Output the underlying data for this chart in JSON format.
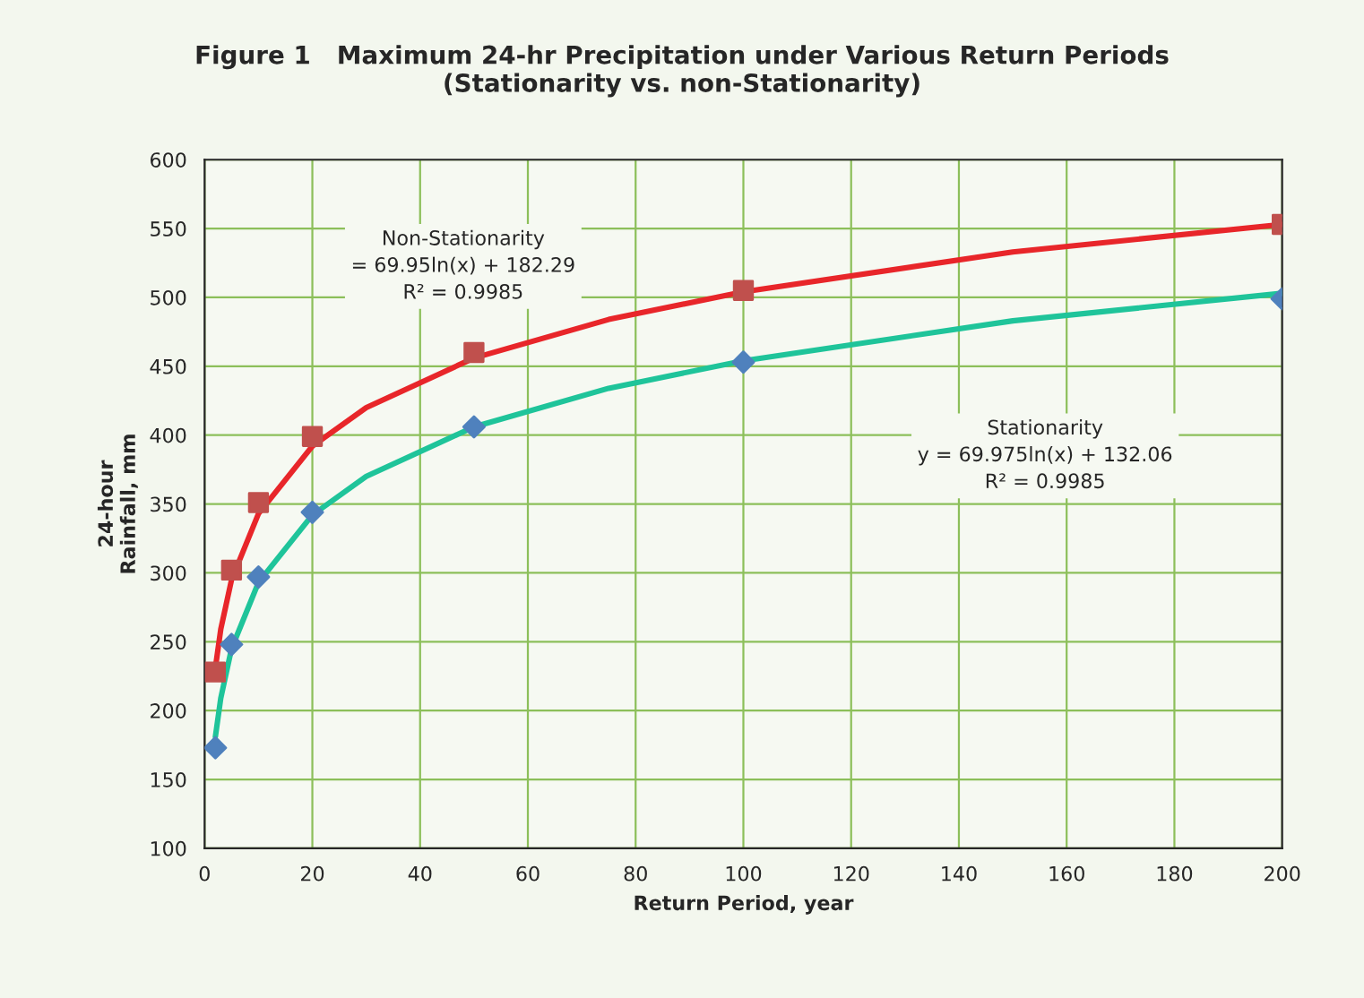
{
  "chart_data": {
    "type": "scatter",
    "title": "Figure 1   Maximum 24-hr Precipitation under Various Return Periods\n(Stationarity vs. non-Stationarity)",
    "xlabel": "Return Period, year",
    "ylabel": "24-hour\nRainfall, mm",
    "xlim": [
      0,
      200
    ],
    "xticks": [
      0,
      20,
      40,
      60,
      80,
      100,
      120,
      140,
      160,
      180,
      200
    ],
    "ylim": [
      100,
      600
    ],
    "yticks": [
      100,
      150,
      200,
      250,
      300,
      350,
      400,
      450,
      500,
      550,
      600
    ],
    "grid": true,
    "legend": false,
    "series": [
      {
        "type": "line",
        "color": "#e8262a",
        "marker": "none",
        "x": [
          2,
          3,
          5,
          10,
          20,
          30,
          50,
          75,
          100,
          150,
          200
        ],
        "values": [
          231,
          259,
          295,
          343,
          392,
          420,
          456,
          484,
          504,
          533,
          553
        ]
      },
      {
        "type": "line",
        "color": "#1fc49a",
        "marker": "none",
        "x": [
          2,
          3,
          5,
          10,
          20,
          30,
          50,
          75,
          100,
          150,
          200
        ],
        "values": [
          181,
          209,
          245,
          293,
          342,
          370,
          406,
          434,
          454,
          483,
          503
        ]
      },
      {
        "color": "#c0504d",
        "marker": "square",
        "x": [
          2,
          5,
          10,
          20,
          50,
          100,
          200
        ],
        "values": [
          228,
          302,
          351,
          399,
          460,
          505,
          553
        ]
      },
      {
        "color": "#4f81bd",
        "marker": "diamond",
        "x": [
          2,
          5,
          10,
          20,
          50,
          100,
          200
        ],
        "values": [
          173,
          248,
          297,
          344,
          406,
          453,
          499
        ]
      }
    ],
    "annotations": [
      "Non-Stationarity\n= 69.95ln(x) + 182.29\nR² = 0.9985",
      "Stationarity\ny = 69.975ln(x) + 132.06\nR² = 0.9985"
    ]
  }
}
